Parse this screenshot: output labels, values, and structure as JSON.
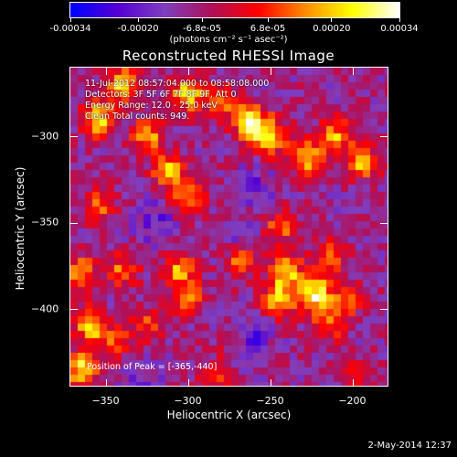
{
  "colorbar": {
    "tick_labels": [
      "-0.00034",
      "-0.00020",
      "-6.8e-05",
      "6.8e-05",
      "0.00020",
      "0.00034"
    ],
    "tick_values": [
      -0.00034,
      -0.0002,
      -6.8e-05,
      6.8e-05,
      0.0002,
      0.00034
    ],
    "units": "(photons cm⁻² s⁻¹ asec⁻²)",
    "colors": [
      "#0000ff",
      "#5500d4",
      "#7f3fbf",
      "#b0105a",
      "#ff0000",
      "#ff8c00",
      "#ffff00",
      "#ffffff"
    ]
  },
  "title": "Reconstructed RHESSI Image",
  "info": {
    "time_range": "11-Jul-2012 08:57:04.000 to 08:58:08.000",
    "detectors": "Detectors: 3F 5F 6F 7F 8F 9F, Att 0",
    "energy_range": "Energy Range: 12.0 - 25.0 keV",
    "method_counts": "Clean    Total counts: 949.",
    "peak": "Position of Peak = [-365,-440]"
  },
  "chart_data": {
    "type": "heatmap",
    "title": "Reconstructed RHESSI Image",
    "xlabel": "Heliocentric X (arcsec)",
    "ylabel": "Heliocentric Y (arcsec)",
    "xlim": [
      -372,
      -178
    ],
    "ylim": [
      -445,
      -260
    ],
    "xticks": [
      -350,
      -300,
      -250,
      -200
    ],
    "xtick_labels": [
      "−350",
      "−300",
      "−250",
      "−200"
    ],
    "yticks": [
      -300,
      -350,
      -400
    ],
    "ytick_labels": [
      "−300",
      "−350",
      "−400"
    ],
    "value_range": [
      -0.00034,
      0.00034
    ],
    "blobs": [
      {
        "x": -355,
        "y": -290,
        "w": 0.9
      },
      {
        "x": -340,
        "y": -270,
        "w": 0.85
      },
      {
        "x": -325,
        "y": -300,
        "w": 0.7
      },
      {
        "x": -300,
        "y": -275,
        "w": 0.9
      },
      {
        "x": -280,
        "y": -280,
        "w": 0.6
      },
      {
        "x": -262,
        "y": -292,
        "w": 1.0
      },
      {
        "x": -250,
        "y": -300,
        "w": 0.85
      },
      {
        "x": -312,
        "y": -320,
        "w": 0.75
      },
      {
        "x": -300,
        "y": -335,
        "w": 0.7
      },
      {
        "x": -228,
        "y": -312,
        "w": 0.8
      },
      {
        "x": -210,
        "y": -300,
        "w": 0.7
      },
      {
        "x": -193,
        "y": -315,
        "w": 0.75
      },
      {
        "x": -355,
        "y": -340,
        "w": 0.55
      },
      {
        "x": -365,
        "y": -380,
        "w": 0.7
      },
      {
        "x": -340,
        "y": -378,
        "w": 0.6
      },
      {
        "x": -305,
        "y": -378,
        "w": 0.7
      },
      {
        "x": -300,
        "y": -395,
        "w": 0.55
      },
      {
        "x": -268,
        "y": -372,
        "w": 0.6
      },
      {
        "x": -240,
        "y": -378,
        "w": 0.85
      },
      {
        "x": -222,
        "y": -392,
        "w": 1.0
      },
      {
        "x": -245,
        "y": -395,
        "w": 0.8
      },
      {
        "x": -213,
        "y": -370,
        "w": 0.6
      },
      {
        "x": -243,
        "y": -352,
        "w": 0.55
      },
      {
        "x": -215,
        "y": -410,
        "w": 0.55
      },
      {
        "x": -203,
        "y": -395,
        "w": 0.5
      },
      {
        "x": -325,
        "y": -410,
        "w": 0.45
      },
      {
        "x": -345,
        "y": -420,
        "w": 0.5
      },
      {
        "x": -360,
        "y": -410,
        "w": 0.8
      },
      {
        "x": -365,
        "y": -435,
        "w": 0.9
      },
      {
        "x": -270,
        "y": -420,
        "w": 0.35
      },
      {
        "x": -285,
        "y": -440,
        "w": 0.4
      },
      {
        "x": -195,
        "y": -440,
        "w": 0.35
      }
    ],
    "dips": [
      {
        "x": -263,
        "y": -418,
        "w": 0.8
      },
      {
        "x": -320,
        "y": -350,
        "w": 0.5
      },
      {
        "x": -260,
        "y": -330,
        "w": 0.4
      },
      {
        "x": -270,
        "y": -360,
        "w": 0.4
      },
      {
        "x": -330,
        "y": -440,
        "w": 0.4
      }
    ]
  },
  "timestamp": "2-May-2014 12:37"
}
